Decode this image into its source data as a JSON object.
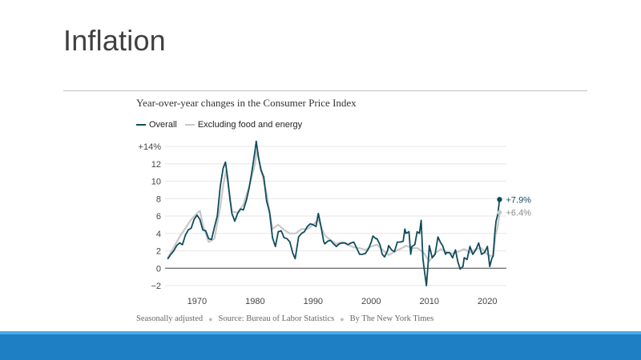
{
  "slide": {
    "title": "Inflation"
  },
  "chart_data": {
    "type": "line",
    "title": "Year-over-year changes in the Consumer Price Index",
    "xlabel": "",
    "ylabel": "",
    "xlim": [
      1964.5,
      2023
    ],
    "ylim": [
      -2,
      14
    ],
    "y_ticks": [
      14,
      12,
      10,
      8,
      6,
      4,
      2,
      0,
      -2
    ],
    "y_tick_labels": [
      "+14%",
      "12",
      "10",
      "8",
      "6",
      "4",
      "2",
      "0",
      "−2"
    ],
    "x_ticks": [
      1970,
      1980,
      1990,
      2000,
      2010,
      2020
    ],
    "x_tick_labels": [
      "1970",
      "1980",
      "1990",
      "2000",
      "2010",
      "2020"
    ],
    "grid": "horizontal",
    "legend_position": "top-left",
    "series": [
      {
        "name": "Overall",
        "color": "#0f4c5c",
        "end_label": "+7.9%",
        "points": [
          [
            1965,
            1.1
          ],
          [
            1965.5,
            1.6
          ],
          [
            1966,
            2.0
          ],
          [
            1966.5,
            2.6
          ],
          [
            1967,
            2.9
          ],
          [
            1967.5,
            2.7
          ],
          [
            1968,
            3.8
          ],
          [
            1968.5,
            4.4
          ],
          [
            1969,
            4.6
          ],
          [
            1969.5,
            5.6
          ],
          [
            1970,
            6.1
          ],
          [
            1970.5,
            5.6
          ],
          [
            1971,
            4.4
          ],
          [
            1971.5,
            4.3
          ],
          [
            1972,
            3.4
          ],
          [
            1972.5,
            3.3
          ],
          [
            1973,
            4.7
          ],
          [
            1973.5,
            6.0
          ],
          [
            1974,
            9.4
          ],
          [
            1974.5,
            11.5
          ],
          [
            1974.9,
            12.2
          ],
          [
            1975.3,
            10.2
          ],
          [
            1975.7,
            7.8
          ],
          [
            1976,
            6.3
          ],
          [
            1976.5,
            5.4
          ],
          [
            1977,
            6.3
          ],
          [
            1977.5,
            6.8
          ],
          [
            1978,
            6.7
          ],
          [
            1978.5,
            7.8
          ],
          [
            1979,
            9.3
          ],
          [
            1979.5,
            11.3
          ],
          [
            1980,
            13.5
          ],
          [
            1980.2,
            14.6
          ],
          [
            1980.6,
            12.7
          ],
          [
            1981,
            11.3
          ],
          [
            1981.5,
            10.5
          ],
          [
            1982,
            7.7
          ],
          [
            1982.5,
            6.4
          ],
          [
            1983,
            3.5
          ],
          [
            1983.5,
            2.5
          ],
          [
            1984,
            4.2
          ],
          [
            1984.5,
            4.3
          ],
          [
            1985,
            3.5
          ],
          [
            1985.5,
            3.4
          ],
          [
            1986,
            3.0
          ],
          [
            1986.5,
            1.7
          ],
          [
            1986.9,
            1.1
          ],
          [
            1987.5,
            3.6
          ],
          [
            1988,
            4.0
          ],
          [
            1988.5,
            4.2
          ],
          [
            1989,
            4.8
          ],
          [
            1989.5,
            5.1
          ],
          [
            1990,
            5.0
          ],
          [
            1990.5,
            4.8
          ],
          [
            1990.9,
            6.3
          ],
          [
            1991.3,
            5.0
          ],
          [
            1991.8,
            3.1
          ],
          [
            1992,
            2.8
          ],
          [
            1992.5,
            3.1
          ],
          [
            1993,
            3.2
          ],
          [
            1993.5,
            2.8
          ],
          [
            1994,
            2.5
          ],
          [
            1994.5,
            2.8
          ],
          [
            1995,
            2.9
          ],
          [
            1995.5,
            2.9
          ],
          [
            1996,
            2.7
          ],
          [
            1996.5,
            2.9
          ],
          [
            1997,
            3.0
          ],
          [
            1997.5,
            2.3
          ],
          [
            1998,
            1.6
          ],
          [
            1998.5,
            1.6
          ],
          [
            1999,
            1.7
          ],
          [
            1999.5,
            2.2
          ],
          [
            2000,
            3.0
          ],
          [
            2000.3,
            3.7
          ],
          [
            2000.8,
            3.4
          ],
          [
            2001,
            3.4
          ],
          [
            2001.5,
            2.7
          ],
          [
            2001.9,
            1.6
          ],
          [
            2002.3,
            1.3
          ],
          [
            2002.8,
            2.0
          ],
          [
            2003,
            2.6
          ],
          [
            2003.5,
            2.1
          ],
          [
            2004,
            1.9
          ],
          [
            2004.5,
            3.0
          ],
          [
            2005,
            3.0
          ],
          [
            2005.5,
            3.1
          ],
          [
            2005.8,
            4.5
          ],
          [
            2006,
            4.0
          ],
          [
            2006.5,
            4.2
          ],
          [
            2006.8,
            1.6
          ],
          [
            2007,
            2.5
          ],
          [
            2007.5,
            2.7
          ],
          [
            2007.9,
            4.2
          ],
          [
            2008.3,
            4.0
          ],
          [
            2008.6,
            5.5
          ],
          [
            2008.9,
            1.1
          ],
          [
            2009.2,
            -0.5
          ],
          [
            2009.5,
            -2.0
          ],
          [
            2009.9,
            1.5
          ],
          [
            2010,
            2.6
          ],
          [
            2010.5,
            1.2
          ],
          [
            2011,
            1.6
          ],
          [
            2011.5,
            3.6
          ],
          [
            2011.9,
            3.0
          ],
          [
            2012.3,
            2.6
          ],
          [
            2012.8,
            1.6
          ],
          [
            2013,
            1.8
          ],
          [
            2013.5,
            1.8
          ],
          [
            2014,
            1.2
          ],
          [
            2014.5,
            2.1
          ],
          [
            2014.9,
            0.8
          ],
          [
            2015.3,
            -0.1
          ],
          [
            2015.8,
            0.2
          ],
          [
            2016,
            1.2
          ],
          [
            2016.5,
            1.0
          ],
          [
            2017,
            2.5
          ],
          [
            2017.5,
            1.6
          ],
          [
            2018,
            2.1
          ],
          [
            2018.5,
            2.9
          ],
          [
            2019,
            1.6
          ],
          [
            2019.5,
            1.8
          ],
          [
            2020,
            2.5
          ],
          [
            2020.4,
            0.2
          ],
          [
            2020.8,
            1.2
          ],
          [
            2021,
            1.4
          ],
          [
            2021.3,
            4.2
          ],
          [
            2021.5,
            5.4
          ],
          [
            2021.8,
            6.2
          ],
          [
            2022.1,
            7.9
          ]
        ]
      },
      {
        "name": "Excluding food and energy",
        "color": "#c8c8c8",
        "end_label": "+6.4%",
        "points": [
          [
            1965,
            1.2
          ],
          [
            1966,
            2.4
          ],
          [
            1967,
            3.6
          ],
          [
            1968,
            4.6
          ],
          [
            1969,
            5.6
          ],
          [
            1970,
            6.3
          ],
          [
            1970.5,
            6.6
          ],
          [
            1971,
            5.0
          ],
          [
            1972,
            3.0
          ],
          [
            1973,
            3.4
          ],
          [
            1974,
            7.0
          ],
          [
            1974.5,
            9.5
          ],
          [
            1975,
            11.2
          ],
          [
            1975.5,
            9.0
          ],
          [
            1976,
            6.5
          ],
          [
            1977,
            6.4
          ],
          [
            1978,
            7.3
          ],
          [
            1979,
            9.4
          ],
          [
            1980,
            12.0
          ],
          [
            1980.3,
            13.5
          ],
          [
            1981,
            11.5
          ],
          [
            1982,
            8.5
          ],
          [
            1983,
            4.5
          ],
          [
            1984,
            5.0
          ],
          [
            1985,
            4.4
          ],
          [
            1986,
            4.0
          ],
          [
            1987,
            4.0
          ],
          [
            1988,
            4.5
          ],
          [
            1989,
            4.5
          ],
          [
            1990,
            5.0
          ],
          [
            1990.9,
            5.6
          ],
          [
            1991.5,
            4.5
          ],
          [
            1992,
            3.8
          ],
          [
            1993,
            3.2
          ],
          [
            1994,
            2.8
          ],
          [
            1995,
            3.0
          ],
          [
            1996,
            2.7
          ],
          [
            1997,
            2.4
          ],
          [
            1998,
            2.3
          ],
          [
            1999,
            2.1
          ],
          [
            2000,
            2.5
          ],
          [
            2001,
            2.7
          ],
          [
            2002,
            2.1
          ],
          [
            2003,
            1.5
          ],
          [
            2004,
            1.9
          ],
          [
            2005,
            2.2
          ],
          [
            2006,
            2.6
          ],
          [
            2007,
            2.3
          ],
          [
            2008,
            2.3
          ],
          [
            2009,
            1.8
          ],
          [
            2010,
            0.8
          ],
          [
            2011,
            1.7
          ],
          [
            2012,
            2.2
          ],
          [
            2013,
            1.8
          ],
          [
            2014,
            1.7
          ],
          [
            2015,
            1.9
          ],
          [
            2016,
            2.2
          ],
          [
            2017,
            1.8
          ],
          [
            2018,
            2.2
          ],
          [
            2019,
            2.3
          ],
          [
            2020,
            1.6
          ],
          [
            2020.5,
            1.4
          ],
          [
            2021,
            1.5
          ],
          [
            2021.4,
            3.8
          ],
          [
            2021.8,
            4.8
          ],
          [
            2022.1,
            6.4
          ]
        ]
      }
    ]
  },
  "footer": {
    "note": "Seasonally adjusted",
    "source": "Source: Bureau of Labor Statistics",
    "credit": "By The New York Times"
  }
}
